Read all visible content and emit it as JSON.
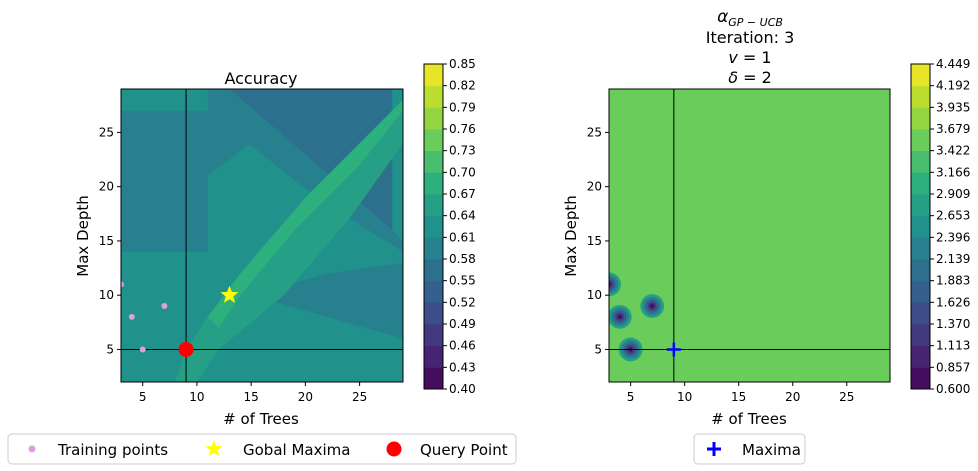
{
  "chart_data": [
    {
      "type": "heatmap",
      "variant": "filled-contour",
      "title": "Accuracy",
      "xlabel": "# of Trees",
      "ylabel": "Max Depth",
      "xlim": [
        3,
        29
      ],
      "ylim": [
        2,
        29
      ],
      "xticks": [
        "5",
        "10",
        "15",
        "20",
        "25"
      ],
      "yticks": [
        "5",
        "10",
        "15",
        "20",
        "25"
      ],
      "colormap": "viridis",
      "colorbar_ticks": [
        "0.40",
        "0.43",
        "0.46",
        "0.49",
        "0.52",
        "0.55",
        "0.58",
        "0.61",
        "0.64",
        "0.67",
        "0.70",
        "0.73",
        "0.76",
        "0.79",
        "0.82",
        "0.85"
      ],
      "background_level": 0.63,
      "regions": [
        {
          "level": 0.59,
          "points": [
            [
              3,
              14
            ],
            [
              11,
              14
            ],
            [
              11,
              27
            ],
            [
              3,
              27
            ]
          ]
        },
        {
          "level": 0.61,
          "points": [
            [
              11,
              21
            ],
            [
              15,
              24
            ],
            [
              19,
              29
            ],
            [
              11,
              29
            ]
          ]
        },
        {
          "level": 0.57,
          "points": [
            [
              13,
              29
            ],
            [
              28,
              29
            ],
            [
              28,
              16
            ]
          ]
        },
        {
          "level": 0.59,
          "points": [
            [
              11,
              27
            ],
            [
              13,
              29
            ],
            [
              28,
              16
            ],
            [
              29,
              15
            ],
            [
              29,
              14
            ],
            [
              21,
              19
            ]
          ]
        },
        {
          "level": 0.59,
          "points": [
            [
              15,
              10
            ],
            [
              22,
              8
            ],
            [
              29,
              6
            ],
            [
              29,
              13
            ],
            [
              22,
              12
            ]
          ]
        },
        {
          "level": 0.66,
          "points": [
            [
              9,
              5
            ],
            [
              11,
              8
            ],
            [
              14,
              12
            ],
            [
              20,
              19
            ],
            [
              26,
              25
            ],
            [
              29,
              28
            ],
            [
              29,
              24
            ],
            [
              24,
              17
            ],
            [
              18,
              10
            ],
            [
              12,
              5
            ],
            [
              10,
              2
            ],
            [
              8,
              2
            ]
          ]
        },
        {
          "level": 0.68,
          "points": [
            [
              11,
              8
            ],
            [
              14,
              12
            ],
            [
              20,
              19
            ],
            [
              26,
              25
            ],
            [
              29,
              28
            ],
            [
              29,
              27
            ],
            [
              25,
              22
            ],
            [
              19,
              16
            ],
            [
              14,
              10
            ],
            [
              12,
              7
            ]
          ]
        }
      ],
      "vlines": [
        9
      ],
      "hlines": [
        5
      ],
      "training_points": [
        [
          3,
          11
        ],
        [
          4,
          8
        ],
        [
          5,
          5
        ],
        [
          7,
          9
        ]
      ],
      "global_maxima": [
        13,
        10
      ],
      "query_point": [
        9,
        5
      ],
      "legend": [
        "Training points",
        "Gobal Maxima",
        "Query Point"
      ]
    },
    {
      "type": "heatmap",
      "variant": "filled-contour",
      "title_lines": [
        "α_{GP-UCB}",
        "Iteration: 3",
        "v = 1",
        "δ = 2"
      ],
      "xlabel": "# of Trees",
      "ylabel": "Max Depth",
      "xlim": [
        3,
        29
      ],
      "ylim": [
        2,
        29
      ],
      "xticks": [
        "5",
        "10",
        "15",
        "20",
        "25"
      ],
      "yticks": [
        "5",
        "10",
        "15",
        "20",
        "25"
      ],
      "colormap": "viridis",
      "colorbar_ticks": [
        "0.600",
        "0.857",
        "1.113",
        "1.370",
        "1.626",
        "1.883",
        "2.139",
        "2.396",
        "2.653",
        "2.909",
        "3.166",
        "3.422",
        "3.679",
        "3.935",
        "4.192",
        "4.449"
      ],
      "background_level": 3.55,
      "dips": [
        {
          "center": [
            3,
            11
          ],
          "rx": 1.1,
          "ry": 1.1
        },
        {
          "center": [
            4,
            8
          ],
          "rx": 1.1,
          "ry": 1.1
        },
        {
          "center": [
            5,
            5
          ],
          "rx": 1.1,
          "ry": 1.1
        },
        {
          "center": [
            7,
            9
          ],
          "rx": 1.1,
          "ry": 1.1
        }
      ],
      "vlines": [
        9
      ],
      "hlines": [
        5
      ],
      "maxima": [
        9,
        5
      ],
      "legend": [
        "Maxima"
      ]
    }
  ]
}
